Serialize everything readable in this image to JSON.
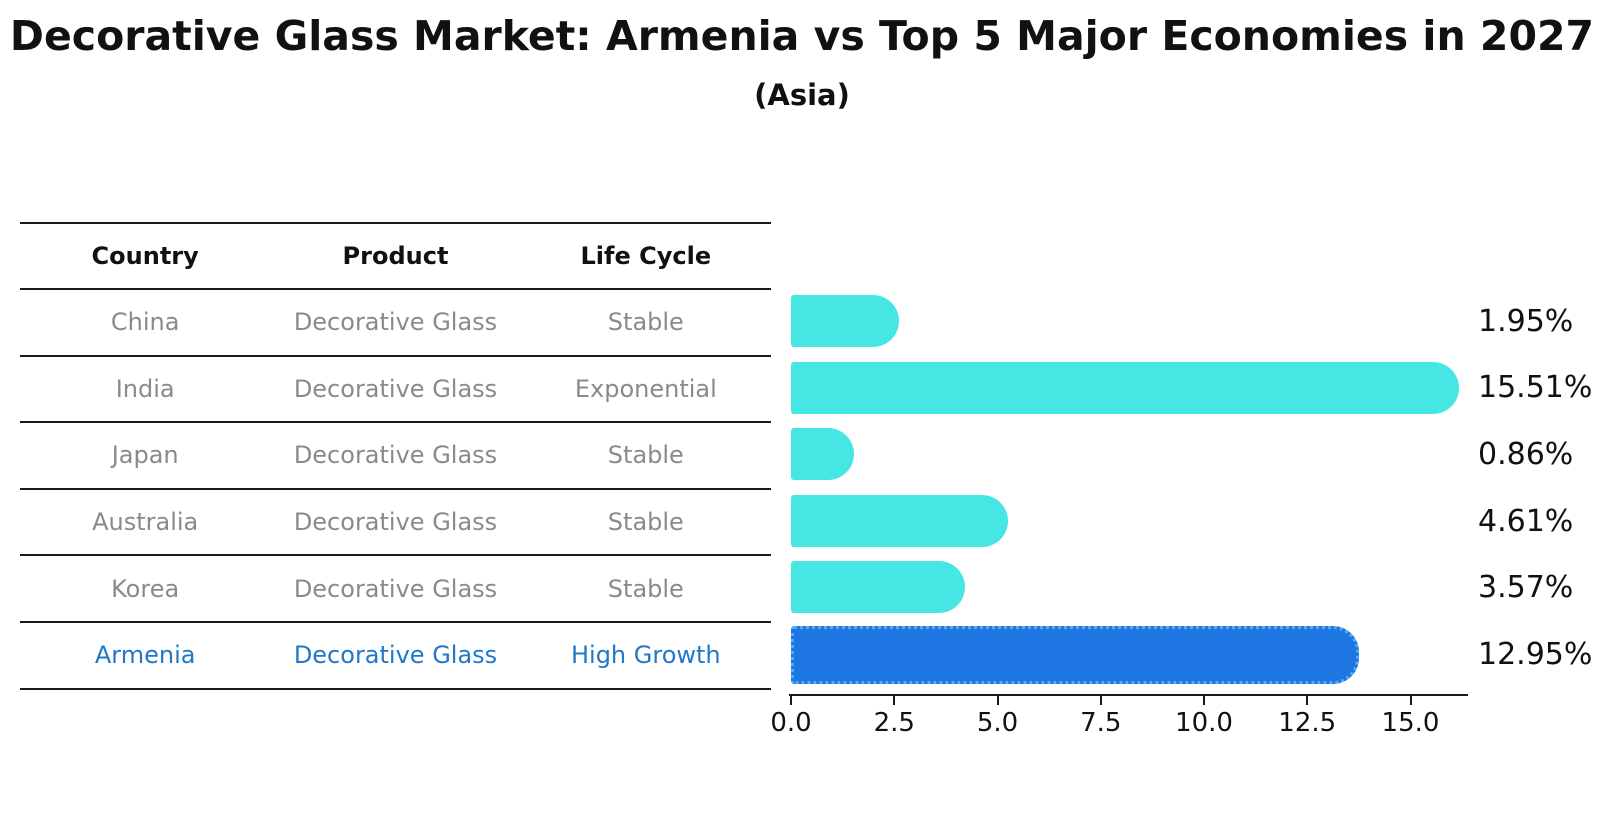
{
  "chart_data": {
    "type": "bar",
    "orientation": "horizontal",
    "title": "Decorative Glass Market: Armenia vs Top 5 Major Economies in 2027",
    "subtitle": "(Asia)",
    "categories": [
      "China",
      "India",
      "Japan",
      "Australia",
      "Korea",
      "Armenia"
    ],
    "values": [
      1.95,
      15.51,
      0.86,
      4.61,
      3.57,
      12.95
    ],
    "value_labels": [
      "1.95%",
      "15.51%",
      "0.86%",
      "4.61%",
      "3.57%",
      "12.95%"
    ],
    "xlabel": "",
    "ylabel": "",
    "xlim": [
      0,
      16.4
    ],
    "xticks": [
      "0.0",
      "2.5",
      "5.0",
      "7.5",
      "10.0",
      "12.5",
      "15.0"
    ],
    "xtick_step": 2.5,
    "grid": false,
    "legend": "none",
    "bar_color": "#45e6e4",
    "highlight_index": 5,
    "highlight_color": "#1d76e2",
    "highlight_border_color": "#58a9f0"
  },
  "table": {
    "headers": [
      "Country",
      "Product",
      "Life Cycle"
    ],
    "rows": [
      {
        "country": "China",
        "product": "Decorative Glass",
        "life_cycle": "Stable",
        "highlight": false
      },
      {
        "country": "India",
        "product": "Decorative Glass",
        "life_cycle": "Exponential",
        "highlight": false
      },
      {
        "country": "Japan",
        "product": "Decorative Glass",
        "life_cycle": "Stable",
        "highlight": false
      },
      {
        "country": "Australia",
        "product": "Decorative Glass",
        "life_cycle": "Stable",
        "highlight": false
      },
      {
        "country": "Korea",
        "product": "Decorative Glass",
        "life_cycle": "Stable",
        "highlight": false
      },
      {
        "country": "Armenia",
        "product": "Decorative Glass",
        "life_cycle": "High Growth",
        "highlight": true
      }
    ],
    "text_color": "#8a8a8a",
    "highlight_text_color": "#1f78c8",
    "line_color": "#1a1a1a"
  }
}
